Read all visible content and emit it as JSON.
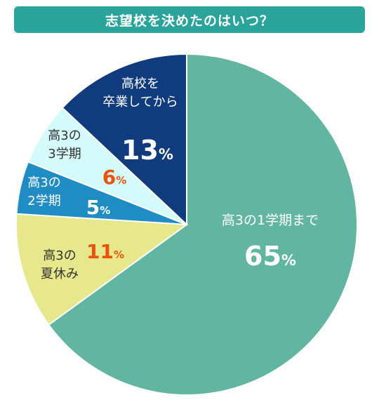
{
  "title": "志望校を決めたのはいつ？",
  "chart_data": {
    "type": "pie",
    "slices": [
      {
        "name": "高3の1学期まで",
        "label_lines": [
          "高3の1学期まで"
        ],
        "value": 65,
        "value_label": "65",
        "unit": "%",
        "color": "#62b5a0",
        "text_color": "#ffffff",
        "value_color": "#ffffff"
      },
      {
        "name": "高3の夏休み",
        "label_lines": [
          "高3の",
          "夏休み"
        ],
        "value": 11,
        "value_label": "11",
        "unit": "%",
        "color": "#e6e88b",
        "text_color": "#333333",
        "value_color": "#e8530e"
      },
      {
        "name": "高3の2学期",
        "label_lines": [
          "高3の",
          "2学期"
        ],
        "value": 5,
        "value_label": "5",
        "unit": "%",
        "color": "#1f8dc3",
        "text_color": "#ffffff",
        "value_color": "#ffffff"
      },
      {
        "name": "高3の3学期",
        "label_lines": [
          "高3の",
          "3学期"
        ],
        "value": 6,
        "value_label": "6",
        "unit": "%",
        "color": "#d5fafc",
        "text_color": "#333333",
        "value_color": "#e8530e"
      },
      {
        "name": "高校を卒業してから",
        "label_lines": [
          "高校を",
          "卒業してから"
        ],
        "value": 13,
        "value_label": "13",
        "unit": "%",
        "color": "#103c7e",
        "text_color": "#ffffff",
        "value_color": "#ffffff"
      }
    ]
  }
}
